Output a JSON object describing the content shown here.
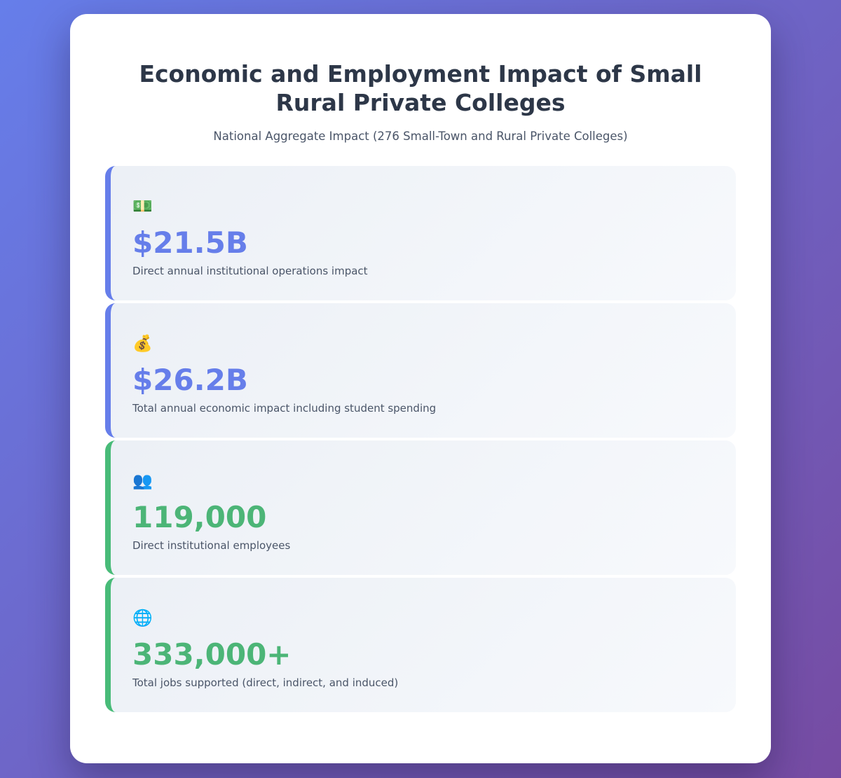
{
  "header": {
    "title": "Economic and Employment Impact of Small Rural Private Colleges",
    "subtitle": "National Aggregate Impact (276 Small-Town and Rural Private Colleges)"
  },
  "colors": {
    "background_gradient_start": "#667eea",
    "background_gradient_end": "#764ba2",
    "accent_blue": "#667eea",
    "accent_green": "#48bb78",
    "green_value_text": "#4cb577",
    "title_text": "#2d3748",
    "secondary_text": "#4a5568",
    "card_background": "#ffffff",
    "stat_card_background": "#eff2f7"
  },
  "stats": [
    {
      "icon": "💵",
      "icon_name": "banknote-icon",
      "value": "$21.5B",
      "label": "Direct annual institutional operations impact",
      "accent": "blue"
    },
    {
      "icon": "💰",
      "icon_name": "money-bag-icon",
      "value": "$26.2B",
      "label": "Total annual economic impact including student spending",
      "accent": "blue"
    },
    {
      "icon": "👥",
      "icon_name": "people-icon",
      "value": "119,000",
      "label": "Direct institutional employees",
      "accent": "green"
    },
    {
      "icon": "🌐",
      "icon_name": "globe-icon",
      "value": "333,000+",
      "label": "Total jobs supported (direct, indirect, and induced)",
      "accent": "green"
    }
  ]
}
